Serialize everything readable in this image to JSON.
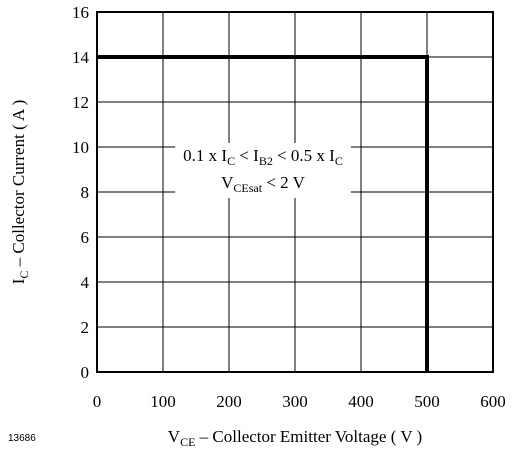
{
  "figure_id": "13686",
  "chart_data": {
    "type": "line",
    "x": [
      0,
      500,
      500
    ],
    "y": [
      14,
      14,
      0
    ],
    "xlim": [
      0,
      600
    ],
    "ylim": [
      0,
      16
    ],
    "xticks": [
      0,
      100,
      200,
      300,
      400,
      500,
      600
    ],
    "yticks": [
      0,
      2,
      4,
      6,
      8,
      10,
      12,
      14,
      16
    ],
    "grid": true,
    "xlabel": {
      "main": "V",
      "sub": "CE",
      "rest": " – Collector Emitter Voltage ( V )"
    },
    "ylabel": {
      "main": "I",
      "sub": "C",
      "rest": " – Collector Current ( A )"
    },
    "annotation": {
      "line1": [
        {
          "t": "0.1 x I"
        },
        {
          "t": "C",
          "sub": true
        },
        {
          "t": " < I"
        },
        {
          "t": "B2",
          "sub": true
        },
        {
          "t": " < 0.5 x I"
        },
        {
          "t": "C",
          "sub": true
        }
      ],
      "line2": [
        {
          "t": "V"
        },
        {
          "t": "CEsat",
          "sub": true
        },
        {
          "t": "  < 2 V"
        }
      ]
    }
  }
}
